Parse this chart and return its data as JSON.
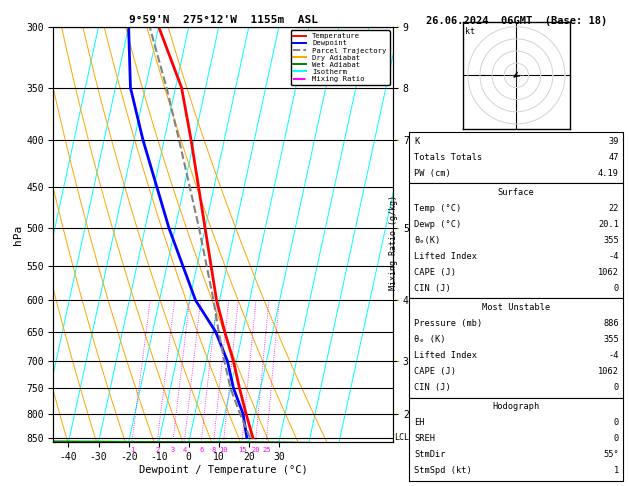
{
  "title_left": "9°59'N  275°12'W  1155m  ASL",
  "title_right": "26.06.2024  06GMT  (Base: 18)",
  "xlabel": "Dewpoint / Temperature (°C)",
  "ylabel_left": "hPa",
  "p_levels": [
    300,
    350,
    400,
    450,
    500,
    550,
    600,
    650,
    700,
    750,
    800,
    850
  ],
  "p_min": 300,
  "p_max": 860,
  "x_min": -45,
  "x_max": 38,
  "skew": 30.0,
  "mixing_ratios": [
    1,
    2,
    3,
    4,
    6,
    8,
    10,
    15,
    20,
    25
  ],
  "temp_profile_p": [
    886,
    850,
    800,
    750,
    700,
    650,
    600,
    500,
    400,
    350,
    300
  ],
  "temp_profile_t": [
    22,
    21,
    17,
    13,
    9,
    4,
    -1,
    -10,
    -21,
    -28,
    -40
  ],
  "dewp_profile_p": [
    886,
    850,
    800,
    750,
    700,
    650,
    600,
    500,
    400,
    350,
    300
  ],
  "dewp_profile_t": [
    20.1,
    19,
    16,
    11,
    7,
    1,
    -8,
    -22,
    -37,
    -45,
    -50
  ],
  "parcel_profile_p": [
    886,
    850,
    800,
    750,
    700,
    650,
    600,
    500,
    400,
    350,
    300
  ],
  "parcel_profile_t": [
    22,
    20,
    15,
    10,
    6,
    2,
    -2,
    -12,
    -25,
    -33,
    -43
  ],
  "lcl_pressure": 850,
  "km_tick_ps": [
    300,
    350,
    400,
    500,
    600,
    700,
    800
  ],
  "km_tick_vs": [
    9,
    8,
    7,
    5,
    4,
    3,
    2
  ],
  "legend_entries": [
    {
      "label": "Temperature",
      "color": "red",
      "ls": "-"
    },
    {
      "label": "Dewpoint",
      "color": "blue",
      "ls": "-"
    },
    {
      "label": "Parcel Trajectory",
      "color": "gray",
      "ls": "--"
    },
    {
      "label": "Dry Adiabat",
      "color": "orange",
      "ls": "-"
    },
    {
      "label": "Wet Adiabat",
      "color": "green",
      "ls": "-"
    },
    {
      "label": "Isotherm",
      "color": "cyan",
      "ls": "-"
    },
    {
      "label": "Mixing Ratio",
      "color": "magenta",
      "ls": "-."
    }
  ],
  "stats_k": "39",
  "stats_tt": "47",
  "stats_pw": "4.19",
  "surf_temp": "22",
  "surf_dewp": "20.1",
  "surf_theta": "355",
  "surf_li": "-4",
  "surf_cape": "1062",
  "surf_cin": "0",
  "mu_pres": "886",
  "mu_theta": "355",
  "mu_li": "-4",
  "mu_cape": "1062",
  "mu_cin": "0",
  "hodo_eh": "0",
  "hodo_sreh": "0",
  "hodo_stmdir": "55°",
  "hodo_stmspd": "1",
  "bg_color": "#ffffff",
  "isotherm_color": "cyan",
  "dry_adiabat_color": "orange",
  "wet_adiabat_color": "green",
  "mixing_ratio_color": "magenta",
  "temp_color": "red",
  "dewp_color": "blue",
  "parcel_color": "gray"
}
